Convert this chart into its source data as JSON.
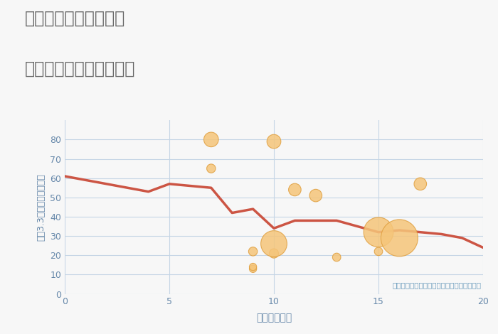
{
  "title_line1": "奈良県生駒市有里町の",
  "title_line2": "駅距離別中古戸建て価格",
  "xlabel": "駅距離（分）",
  "ylabel": "坪（3.3㎡）単価（万円）",
  "annotation": "円の大きさは、取引のあった物件面積を示す",
  "xlim": [
    0,
    20
  ],
  "ylim": [
    0,
    90
  ],
  "xticks": [
    0,
    5,
    10,
    15,
    20
  ],
  "yticks": [
    0,
    10,
    20,
    30,
    40,
    50,
    60,
    70,
    80
  ],
  "line_x": [
    0,
    4,
    5,
    6,
    7,
    8,
    9,
    10,
    11,
    12,
    13,
    15,
    16,
    17,
    18,
    19,
    20
  ],
  "line_y": [
    61,
    53,
    57,
    56,
    55,
    42,
    44,
    34,
    38,
    38,
    38,
    32,
    33,
    32,
    31,
    29,
    24
  ],
  "line_color": "#cc5544",
  "line_width": 2.5,
  "scatter_x": [
    7,
    7,
    9,
    9,
    9,
    10,
    10,
    10,
    11,
    12,
    13,
    15,
    15,
    16,
    17
  ],
  "scatter_y": [
    80,
    65,
    13,
    14,
    22,
    21,
    26,
    79,
    54,
    51,
    19,
    32,
    22,
    29,
    57
  ],
  "scatter_size": [
    220,
    80,
    55,
    55,
    80,
    90,
    700,
    200,
    160,
    160,
    70,
    900,
    70,
    1400,
    160
  ],
  "scatter_color": "#f5c57a",
  "scatter_alpha": 0.85,
  "scatter_edge_color": "#e0a040",
  "scatter_edge_width": 0.8,
  "bg_color": "#f7f7f7",
  "plot_bg_color": "#f7f7f7",
  "grid_color": "#c5d5e5",
  "title_color": "#666666",
  "axis_label_color": "#6688aa",
  "tick_label_color": "#6688aa",
  "annotation_color": "#6699bb"
}
